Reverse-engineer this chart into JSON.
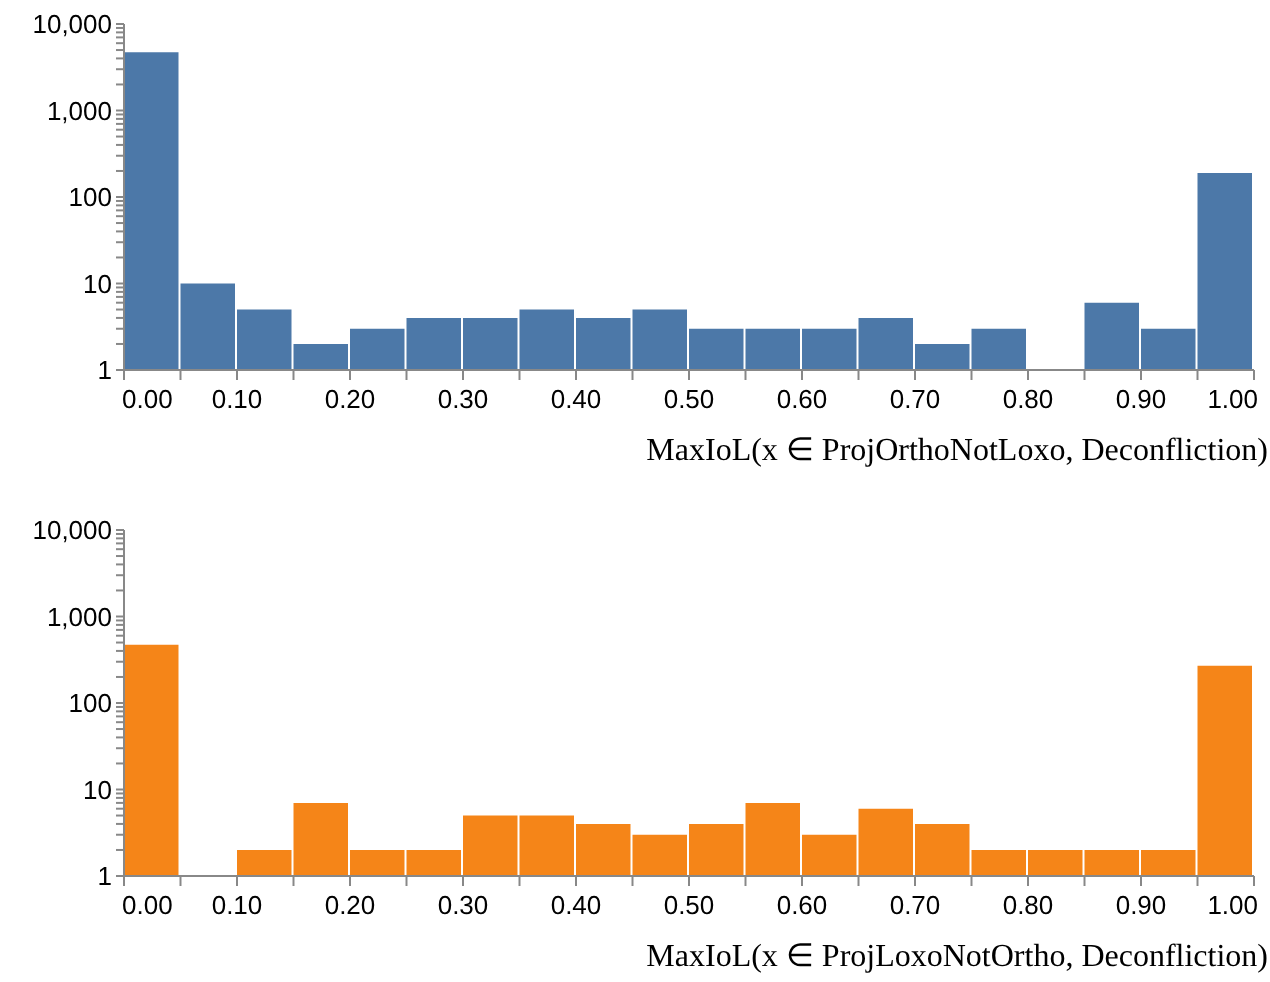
{
  "chart_data": [
    {
      "type": "histogram",
      "xlabel": "MaxIoL(x ∈ ProjOrthoNotLoxo, Deconfliction)",
      "color": "#4c78a8",
      "log": "y",
      "bins": [
        0,
        0.05,
        0.1,
        0.15,
        0.2,
        0.25,
        0.3,
        0.35,
        0.4,
        0.45,
        0.5,
        0.55,
        0.6,
        0.65,
        0.7,
        0.75,
        0.8,
        0.85,
        0.9,
        0.95,
        1.0
      ],
      "values": [
        4700,
        10,
        5,
        2,
        3,
        4,
        4,
        5,
        4,
        5,
        3,
        3,
        3,
        4,
        2,
        3,
        null,
        6,
        3,
        190
      ],
      "xlim": [
        0,
        1
      ],
      "xticks": [
        {
          "value": 0,
          "label": "0.00"
        },
        {
          "value": 0.05,
          "label": null
        },
        {
          "value": 0.1,
          "label": "0.10"
        },
        {
          "value": 0.15,
          "label": null
        },
        {
          "value": 0.2,
          "label": "0.20"
        },
        {
          "value": 0.25,
          "label": null
        },
        {
          "value": 0.3,
          "label": "0.30"
        },
        {
          "value": 0.35,
          "label": null
        },
        {
          "value": 0.4,
          "label": "0.40"
        },
        {
          "value": 0.45,
          "label": null
        },
        {
          "value": 0.5,
          "label": "0.50"
        },
        {
          "value": 0.55,
          "label": null
        },
        {
          "value": 0.6,
          "label": "0.60"
        },
        {
          "value": 0.65,
          "label": null
        },
        {
          "value": 0.7,
          "label": "0.70"
        },
        {
          "value": 0.75,
          "label": null
        },
        {
          "value": 0.8,
          "label": "0.80"
        },
        {
          "value": 0.85,
          "label": null
        },
        {
          "value": 0.9,
          "label": "0.90"
        },
        {
          "value": 0.95,
          "label": null
        },
        {
          "value": 1,
          "label": "1.00"
        }
      ],
      "ylim": [
        1,
        10000
      ],
      "yticks": [
        {
          "value": 1,
          "label": "1"
        },
        {
          "value": 2,
          "label": null
        },
        {
          "value": 3,
          "label": null
        },
        {
          "value": 4,
          "label": null
        },
        {
          "value": 5,
          "label": null
        },
        {
          "value": 6,
          "label": null
        },
        {
          "value": 7,
          "label": null
        },
        {
          "value": 8,
          "label": null
        },
        {
          "value": 9,
          "label": null
        },
        {
          "value": 10,
          "label": "10"
        },
        {
          "value": 20,
          "label": null
        },
        {
          "value": 30,
          "label": null
        },
        {
          "value": 40,
          "label": null
        },
        {
          "value": 50,
          "label": null
        },
        {
          "value": 60,
          "label": null
        },
        {
          "value": 70,
          "label": null
        },
        {
          "value": 80,
          "label": null
        },
        {
          "value": 90,
          "label": null
        },
        {
          "value": 100,
          "label": "100"
        },
        {
          "value": 200,
          "label": null
        },
        {
          "value": 300,
          "label": null
        },
        {
          "value": 400,
          "label": null
        },
        {
          "value": 500,
          "label": null
        },
        {
          "value": 600,
          "label": null
        },
        {
          "value": 700,
          "label": null
        },
        {
          "value": 800,
          "label": null
        },
        {
          "value": 900,
          "label": null
        },
        {
          "value": 1000,
          "label": "1,000"
        },
        {
          "value": 2000,
          "label": null
        },
        {
          "value": 3000,
          "label": null
        },
        {
          "value": 4000,
          "label": null
        },
        {
          "value": 5000,
          "label": null
        },
        {
          "value": 6000,
          "label": null
        },
        {
          "value": 7000,
          "label": null
        },
        {
          "value": 8000,
          "label": null
        },
        {
          "value": 9000,
          "label": null
        },
        {
          "value": 10000,
          "label": "10,000"
        }
      ]
    },
    {
      "type": "histogram",
      "xlabel": "MaxIoL(x ∈ ProjLoxoNotOrtho, Deconfliction)",
      "color": "#f58518",
      "log": "y",
      "bins": [
        0,
        0.05,
        0.1,
        0.15,
        0.2,
        0.25,
        0.3,
        0.35,
        0.4,
        0.45,
        0.5,
        0.55,
        0.6,
        0.65,
        0.7,
        0.75,
        0.8,
        0.85,
        0.9,
        0.95,
        1.0
      ],
      "values": [
        470,
        null,
        2,
        7,
        2,
        2,
        5,
        5,
        4,
        3,
        4,
        7,
        3,
        6,
        4,
        2,
        2,
        2,
        2,
        270
      ],
      "xlim": [
        0,
        1
      ],
      "xticks": [
        {
          "value": 0,
          "label": "0.00"
        },
        {
          "value": 0.05,
          "label": null
        },
        {
          "value": 0.1,
          "label": "0.10"
        },
        {
          "value": 0.15,
          "label": null
        },
        {
          "value": 0.2,
          "label": "0.20"
        },
        {
          "value": 0.25,
          "label": null
        },
        {
          "value": 0.3,
          "label": "0.30"
        },
        {
          "value": 0.35,
          "label": null
        },
        {
          "value": 0.4,
          "label": "0.40"
        },
        {
          "value": 0.45,
          "label": null
        },
        {
          "value": 0.5,
          "label": "0.50"
        },
        {
          "value": 0.55,
          "label": null
        },
        {
          "value": 0.6,
          "label": "0.60"
        },
        {
          "value": 0.65,
          "label": null
        },
        {
          "value": 0.7,
          "label": "0.70"
        },
        {
          "value": 0.75,
          "label": null
        },
        {
          "value": 0.8,
          "label": "0.80"
        },
        {
          "value": 0.85,
          "label": null
        },
        {
          "value": 0.9,
          "label": "0.90"
        },
        {
          "value": 0.95,
          "label": null
        },
        {
          "value": 1,
          "label": "1.00"
        }
      ],
      "ylim": [
        1,
        10000
      ],
      "yticks": [
        {
          "value": 1,
          "label": "1"
        },
        {
          "value": 2,
          "label": null
        },
        {
          "value": 3,
          "label": null
        },
        {
          "value": 4,
          "label": null
        },
        {
          "value": 5,
          "label": null
        },
        {
          "value": 6,
          "label": null
        },
        {
          "value": 7,
          "label": null
        },
        {
          "value": 8,
          "label": null
        },
        {
          "value": 9,
          "label": null
        },
        {
          "value": 10,
          "label": "10"
        },
        {
          "value": 20,
          "label": null
        },
        {
          "value": 30,
          "label": null
        },
        {
          "value": 40,
          "label": null
        },
        {
          "value": 50,
          "label": null
        },
        {
          "value": 60,
          "label": null
        },
        {
          "value": 70,
          "label": null
        },
        {
          "value": 80,
          "label": null
        },
        {
          "value": 90,
          "label": null
        },
        {
          "value": 100,
          "label": "100"
        },
        {
          "value": 200,
          "label": null
        },
        {
          "value": 300,
          "label": null
        },
        {
          "value": 400,
          "label": null
        },
        {
          "value": 500,
          "label": null
        },
        {
          "value": 600,
          "label": null
        },
        {
          "value": 700,
          "label": null
        },
        {
          "value": 800,
          "label": null
        },
        {
          "value": 900,
          "label": null
        },
        {
          "value": 1000,
          "label": "1,000"
        },
        {
          "value": 2000,
          "label": null
        },
        {
          "value": 3000,
          "label": null
        },
        {
          "value": 4000,
          "label": null
        },
        {
          "value": 5000,
          "label": null
        },
        {
          "value": 6000,
          "label": null
        },
        {
          "value": 7000,
          "label": null
        },
        {
          "value": 8000,
          "label": null
        },
        {
          "value": 9000,
          "label": null
        },
        {
          "value": 10000,
          "label": "10,000"
        }
      ]
    }
  ]
}
